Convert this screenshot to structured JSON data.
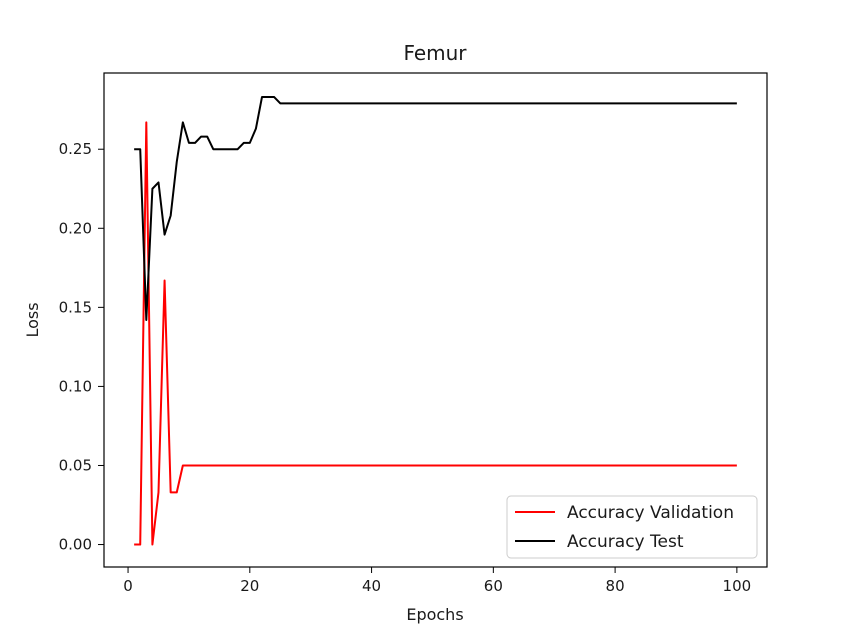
{
  "chart_data": {
    "type": "line",
    "title": "Femur",
    "xlabel": "Epochs",
    "ylabel": "Loss",
    "xlim": [
      -3.95,
      104.95
    ],
    "ylim": [
      -0.0142,
      0.2982
    ],
    "xticks": [
      0,
      20,
      40,
      60,
      80,
      100
    ],
    "yticks": [
      0.0,
      0.05,
      0.1,
      0.15,
      0.2,
      0.25
    ],
    "ytick_labels": [
      "0.00",
      "0.05",
      "0.10",
      "0.15",
      "0.20",
      "0.25"
    ],
    "grid": false,
    "legend_position": "lower-right",
    "series": [
      {
        "name": "Accuracy Validation",
        "color": "#ff0000",
        "x": [
          1,
          2,
          3,
          4,
          5,
          6,
          7,
          8,
          9,
          10,
          100
        ],
        "y": [
          0.0,
          0.0,
          0.267,
          0.0,
          0.033,
          0.167,
          0.033,
          0.033,
          0.05,
          0.05,
          0.05
        ]
      },
      {
        "name": "Accuracy Test",
        "color": "#000000",
        "x": [
          1,
          2,
          3,
          4,
          5,
          6,
          7,
          8,
          9,
          10,
          11,
          12,
          13,
          14,
          15,
          16,
          17,
          18,
          19,
          20,
          21,
          22,
          23,
          24,
          25,
          26,
          100
        ],
        "y": [
          0.25,
          0.25,
          0.142,
          0.225,
          0.229,
          0.196,
          0.208,
          0.242,
          0.267,
          0.254,
          0.254,
          0.258,
          0.258,
          0.25,
          0.25,
          0.25,
          0.25,
          0.25,
          0.254,
          0.254,
          0.263,
          0.283,
          0.283,
          0.283,
          0.279,
          0.279,
          0.279
        ]
      }
    ]
  }
}
